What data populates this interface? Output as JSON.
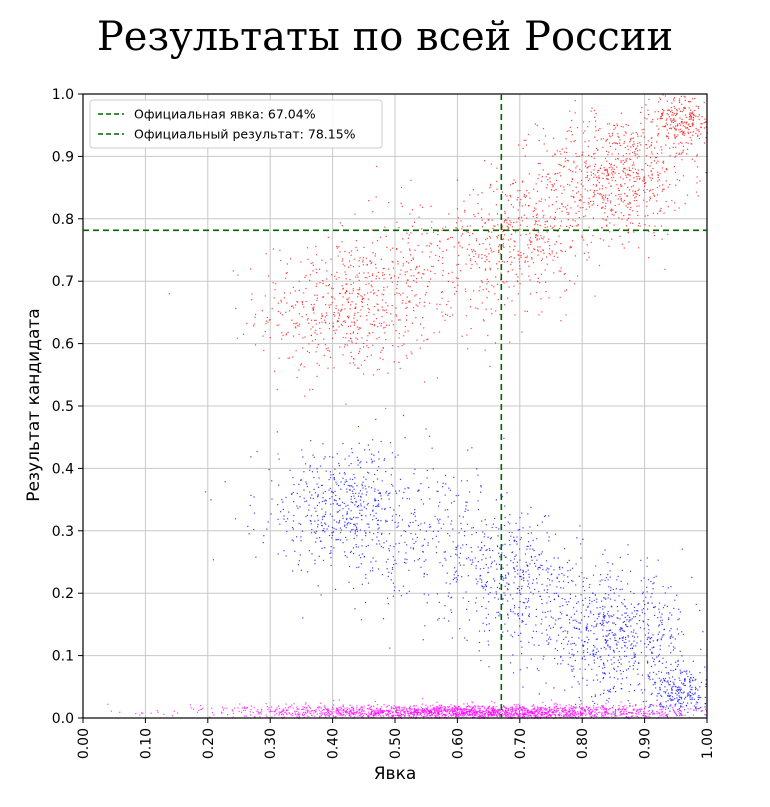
{
  "chart_data": {
    "type": "scatter",
    "title": "Результаты по всей России",
    "xlabel": "Явка",
    "ylabel": "Результат кандидата",
    "xlim": [
      0.0,
      1.0
    ],
    "ylim": [
      0.0,
      1.0
    ],
    "x_ticks": [
      "0.00",
      "0.10",
      "0.20",
      "0.30",
      "0.40",
      "0.50",
      "0.60",
      "0.70",
      "0.80",
      "0.90",
      "1.00"
    ],
    "y_ticks": [
      "0.0",
      "0.1",
      "0.2",
      "0.3",
      "0.4",
      "0.5",
      "0.6",
      "0.7",
      "0.8",
      "0.9",
      "1.0"
    ],
    "grid": true,
    "legend_position": "top-left",
    "reference_lines": [
      {
        "orientation": "vertical",
        "value": 0.6704,
        "label": "Официальная явка: 67.04%",
        "color": "#006400",
        "style": "dashed"
      },
      {
        "orientation": "horizontal",
        "value": 0.7815,
        "label": "Официальный результат: 78.15%",
        "color": "#006400",
        "style": "dashed"
      }
    ],
    "series": [
      {
        "color": "#ff0000",
        "clusters": [
          {
            "x": 0.42,
            "y": 0.655,
            "sx": 0.07,
            "sy": 0.055,
            "weight": 1.0
          },
          {
            "x": 0.85,
            "y": 0.87,
            "sx": 0.06,
            "sy": 0.05,
            "weight": 1.3
          },
          {
            "x": 0.96,
            "y": 0.96,
            "sx": 0.025,
            "sy": 0.025,
            "weight": 0.5
          },
          {
            "x": 0.7,
            "y": 0.77,
            "sx": 0.05,
            "sy": 0.05,
            "weight": 0.7
          },
          {
            "x": 0.56,
            "y": 0.72,
            "sx": 0.08,
            "sy": 0.06,
            "weight": 0.5
          }
        ]
      },
      {
        "color": "#0000ff",
        "clusters": [
          {
            "x": 0.42,
            "y": 0.34,
            "sx": 0.07,
            "sy": 0.05,
            "weight": 1.0
          },
          {
            "x": 0.85,
            "y": 0.13,
            "sx": 0.06,
            "sy": 0.05,
            "weight": 1.3
          },
          {
            "x": 0.96,
            "y": 0.04,
            "sx": 0.025,
            "sy": 0.025,
            "weight": 0.5
          },
          {
            "x": 0.7,
            "y": 0.22,
            "sx": 0.05,
            "sy": 0.05,
            "weight": 0.7
          },
          {
            "x": 0.56,
            "y": 0.28,
            "sx": 0.08,
            "sy": 0.06,
            "weight": 0.5
          }
        ]
      },
      {
        "color": "#ff00ff",
        "clusters": [
          {
            "x": 0.62,
            "y": 0.01,
            "sx": 0.18,
            "sy": 0.006,
            "weight": 1.0
          }
        ]
      }
    ],
    "point_count": 2200
  }
}
